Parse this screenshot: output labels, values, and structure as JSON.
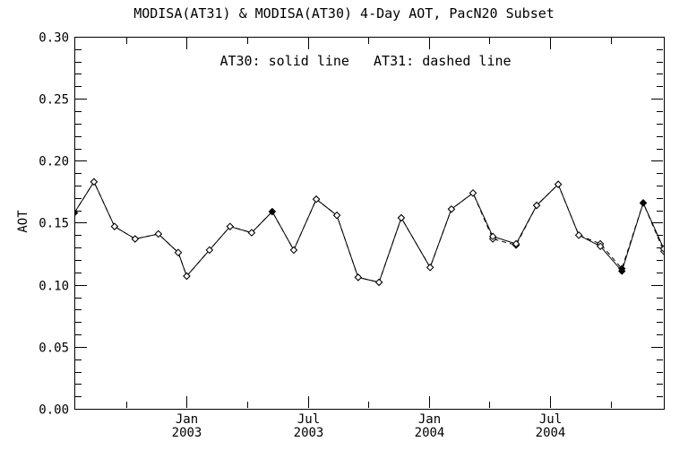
{
  "chart_data": {
    "type": "line",
    "title": "MODISA(AT31) & MODISA(AT30) 4-Day AOT, PacN20 Subset",
    "annotation": "AT30: solid line   AT31: dashed line",
    "ylabel": "AOT",
    "xlabel": "",
    "ylim": [
      0.0,
      0.3
    ],
    "ytick_step": 0.05,
    "ytick_minor_step": 0.01,
    "ytick_labels": [
      "0.00",
      "0.05",
      "0.10",
      "0.15",
      "0.20",
      "0.25",
      "0.30"
    ],
    "xlim": [
      2002.536,
      2004.97
    ],
    "xticks": [
      {
        "v": 2003.0,
        "line1": "Jan",
        "line2": "2003"
      },
      {
        "v": 2003.5,
        "line1": "Jul",
        "line2": "2003"
      },
      {
        "v": 2004.0,
        "line1": "Jan",
        "line2": "2004"
      },
      {
        "v": 2004.5,
        "line1": "Jul",
        "line2": "2004"
      }
    ],
    "xtick_minor": [
      2002.75,
      2003.25,
      2003.75,
      2004.25,
      2004.75
    ],
    "grid": false,
    "legend_position": "top-center-inside",
    "marker": "diamond",
    "filled_marker_indices": [
      0,
      10,
      26,
      27
    ],
    "colors": {
      "foreground": "#000000",
      "background": "#ffffff"
    },
    "x": [
      2002.536,
      2002.617,
      2002.702,
      2002.787,
      2002.883,
      2002.965,
      2003.0,
      2003.094,
      2003.179,
      2003.268,
      2003.353,
      2003.442,
      2003.535,
      2003.62,
      2003.708,
      2003.794,
      2003.886,
      2004.005,
      2004.093,
      2004.182,
      2004.264,
      2004.36,
      2004.445,
      2004.534,
      2004.619,
      2004.708,
      2004.797,
      2004.885,
      2004.97
    ],
    "series": [
      {
        "name": "AT30",
        "line_style": "solid",
        "values": [
          0.158,
          0.183,
          0.147,
          0.137,
          0.141,
          0.126,
          0.107,
          0.128,
          0.147,
          0.142,
          0.159,
          0.128,
          0.169,
          0.156,
          0.106,
          0.102,
          0.154,
          0.114,
          0.161,
          0.174,
          0.139,
          0.133,
          0.164,
          0.181,
          0.14,
          0.131,
          0.111,
          0.166,
          0.129
        ]
      },
      {
        "name": "AT31",
        "line_style": "dashed",
        "values": [
          0.158,
          0.183,
          0.147,
          0.137,
          0.141,
          0.126,
          0.107,
          0.128,
          0.147,
          0.142,
          0.159,
          0.128,
          0.169,
          0.156,
          0.106,
          0.102,
          0.154,
          0.114,
          0.161,
          0.174,
          0.137,
          0.132,
          0.164,
          0.181,
          0.14,
          0.133,
          0.113,
          0.166,
          0.127
        ]
      }
    ]
  }
}
